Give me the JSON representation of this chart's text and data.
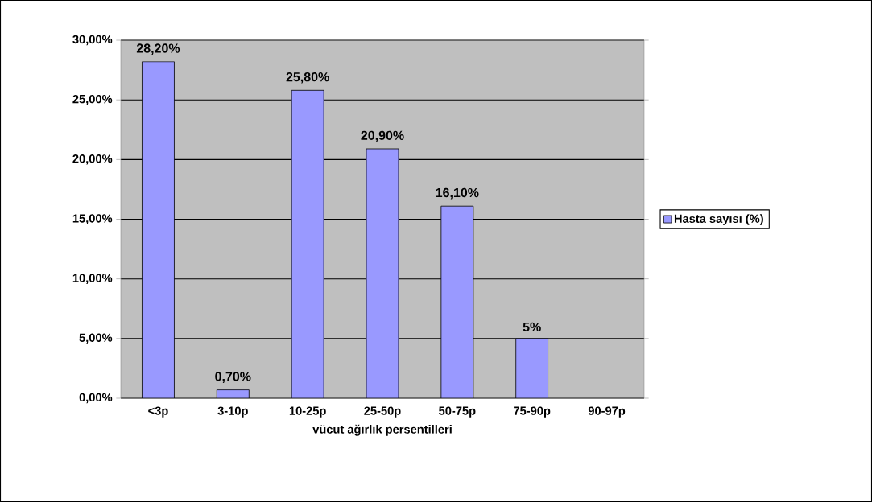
{
  "chart_data": {
    "type": "bar",
    "xlabel": "vücut ağırlık persentilleri",
    "categories": [
      "<3p",
      "3-10p",
      "10-25p",
      "25-50p",
      "50-75p",
      "75-90p",
      "90-97p"
    ],
    "series": [
      {
        "name": "Hasta sayısı (%)",
        "color": "#9999ff",
        "values": [
          28.2,
          0.7,
          25.8,
          20.9,
          16.1,
          5,
          null
        ],
        "value_labels": [
          "28,20%",
          "0,70%",
          "25,80%",
          "20,90%",
          "16,10%",
          "5%",
          null
        ]
      }
    ],
    "ylim": [
      0,
      30
    ],
    "yticks": [
      {
        "value": 0,
        "label": "0,00%"
      },
      {
        "value": 5,
        "label": "5,00%"
      },
      {
        "value": 10,
        "label": "10,00%"
      },
      {
        "value": 15,
        "label": "15,00%"
      },
      {
        "value": 20,
        "label": "20,00%"
      },
      {
        "value": 25,
        "label": "25,00%"
      },
      {
        "value": 30,
        "label": "30,00%"
      }
    ],
    "grid": "y",
    "legend": "right"
  }
}
